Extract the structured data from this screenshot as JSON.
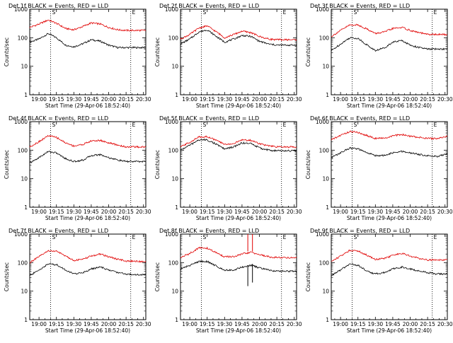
{
  "figure": {
    "common": {
      "ylabel": "Counts/sec",
      "xlabel": "Start Time (29-Apr-06 18:52:40)",
      "xticks": [
        "19:00",
        "19:15",
        "19:30",
        "19:45",
        "20:00",
        "20:15",
        "20:30"
      ],
      "yticks": [
        "1",
        "10",
        "100",
        "1000"
      ],
      "corner_labels": [
        "S",
        "E"
      ],
      "colors": {
        "events": "#000000",
        "lld": "#e00000",
        "marker": "#000000"
      }
    }
  },
  "chart_data": [
    {
      "type": "line",
      "title": "Det 1f BLACK = Events, RED = LLD",
      "x_range": [
        "18:52",
        "20:32"
      ],
      "ylim": [
        1,
        1000
      ],
      "yscale": "log",
      "vlines": [
        "19:10",
        "20:19"
      ],
      "series": [
        {
          "name": "BLACK = Events",
          "x": [
            "18:52",
            "19:00",
            "19:08",
            "19:15",
            "19:23",
            "19:30",
            "19:38",
            "19:45",
            "19:53",
            "20:00",
            "20:08",
            "20:15",
            "20:23",
            "20:30"
          ],
          "y": [
            70,
            90,
            140,
            100,
            55,
            48,
            62,
            85,
            75,
            55,
            45,
            45,
            45,
            45
          ]
        },
        {
          "name": "RED = LLD",
          "x": [
            "18:52",
            "19:00",
            "19:08",
            "19:15",
            "19:23",
            "19:30",
            "19:38",
            "19:45",
            "19:53",
            "20:00",
            "20:08",
            "20:15",
            "20:23",
            "20:30"
          ],
          "y": [
            230,
            300,
            420,
            320,
            210,
            190,
            250,
            330,
            300,
            230,
            190,
            180,
            180,
            180
          ]
        }
      ]
    },
    {
      "type": "line",
      "title": "Det 2f BLACK = Events, RED = LLD",
      "x_range": [
        "18:52",
        "20:32"
      ],
      "ylim": [
        1,
        1000
      ],
      "yscale": "log",
      "vlines": [
        "19:10",
        "20:19"
      ],
      "series": [
        {
          "name": "BLACK = Events",
          "x": [
            "18:52",
            "19:00",
            "19:08",
            "19:15",
            "19:23",
            "19:30",
            "19:38",
            "19:45",
            "19:53",
            "20:00",
            "20:08",
            "20:15",
            "20:23",
            "20:30"
          ],
          "y": [
            60,
            90,
            160,
            190,
            110,
            70,
            90,
            120,
            110,
            75,
            60,
            55,
            55,
            55
          ]
        },
        {
          "name": "RED = LLD",
          "x": [
            "18:52",
            "19:00",
            "19:08",
            "19:15",
            "19:23",
            "19:30",
            "19:38",
            "19:45",
            "19:53",
            "20:00",
            "20:08",
            "20:15",
            "20:23",
            "20:30"
          ],
          "y": [
            90,
            130,
            220,
            260,
            160,
            100,
            130,
            170,
            150,
            110,
            90,
            85,
            85,
            85
          ]
        }
      ]
    },
    {
      "type": "line",
      "title": "Det 3f BLACK = Events, RED = LLD",
      "x_range": [
        "18:52",
        "20:32"
      ],
      "ylim": [
        1,
        1000
      ],
      "yscale": "log",
      "vlines": [
        "19:10",
        "20:19"
      ],
      "series": [
        {
          "name": "BLACK = Events",
          "x": [
            "18:52",
            "19:00",
            "19:08",
            "19:15",
            "19:23",
            "19:30",
            "19:38",
            "19:45",
            "19:53",
            "20:00",
            "20:08",
            "20:15",
            "20:23",
            "20:30"
          ],
          "y": [
            35,
            60,
            100,
            95,
            55,
            35,
            45,
            70,
            80,
            55,
            45,
            40,
            40,
            40
          ]
        },
        {
          "name": "RED = LLD",
          "x": [
            "18:52",
            "19:00",
            "19:08",
            "19:15",
            "19:23",
            "19:30",
            "19:38",
            "19:45",
            "19:53",
            "20:00",
            "20:08",
            "20:15",
            "20:23",
            "20:30"
          ],
          "y": [
            110,
            180,
            280,
            280,
            200,
            140,
            160,
            210,
            230,
            180,
            150,
            130,
            130,
            130
          ]
        }
      ]
    },
    {
      "type": "line",
      "title": "Det 4f BLACK = Events, RED = LLD",
      "x_range": [
        "18:52",
        "20:32"
      ],
      "ylim": [
        1,
        1000
      ],
      "yscale": "log",
      "vlines": [
        "19:10",
        "20:19"
      ],
      "series": [
        {
          "name": "BLACK = Events",
          "x": [
            "18:52",
            "19:00",
            "19:08",
            "19:15",
            "19:23",
            "19:30",
            "19:38",
            "19:45",
            "19:53",
            "20:00",
            "20:08",
            "20:15",
            "20:23",
            "20:30"
          ],
          "y": [
            35,
            55,
            90,
            80,
            50,
            40,
            45,
            65,
            70,
            55,
            45,
            40,
            40,
            40
          ]
        },
        {
          "name": "RED = LLD",
          "x": [
            "18:52",
            "19:00",
            "19:08",
            "19:15",
            "19:23",
            "19:30",
            "19:38",
            "19:45",
            "19:53",
            "20:00",
            "20:08",
            "20:15",
            "20:23",
            "20:30"
          ],
          "y": [
            130,
            200,
            320,
            280,
            180,
            140,
            160,
            210,
            220,
            180,
            150,
            130,
            130,
            130
          ]
        }
      ]
    },
    {
      "type": "line",
      "title": "Det 5f BLACK = Events, RED = LLD",
      "x_range": [
        "18:52",
        "20:32"
      ],
      "ylim": [
        1,
        1000
      ],
      "yscale": "log",
      "vlines": [
        "19:10",
        "20:19"
      ],
      "series": [
        {
          "name": "BLACK = Events",
          "x": [
            "18:52",
            "19:00",
            "19:08",
            "19:15",
            "19:23",
            "19:30",
            "19:38",
            "19:45",
            "19:53",
            "20:00",
            "20:08",
            "20:15",
            "20:23",
            "20:30"
          ],
          "y": [
            100,
            150,
            230,
            230,
            160,
            110,
            130,
            180,
            170,
            120,
            100,
            95,
            95,
            95
          ]
        },
        {
          "name": "RED = LLD",
          "x": [
            "18:52",
            "19:00",
            "19:08",
            "19:15",
            "19:23",
            "19:30",
            "19:38",
            "19:45",
            "19:53",
            "20:00",
            "20:08",
            "20:15",
            "20:23",
            "20:30"
          ],
          "y": [
            130,
            190,
            290,
            300,
            220,
            160,
            170,
            230,
            220,
            170,
            140,
            130,
            130,
            130
          ]
        }
      ]
    },
    {
      "type": "line",
      "title": "Det 6f BLACK = Events, RED = LLD",
      "x_range": [
        "18:52",
        "20:32"
      ],
      "ylim": [
        1,
        1000
      ],
      "yscale": "log",
      "vlines": [
        "19:10",
        "20:19"
      ],
      "series": [
        {
          "name": "BLACK = Events",
          "x": [
            "18:52",
            "19:00",
            "19:08",
            "19:15",
            "19:23",
            "19:30",
            "19:38",
            "19:45",
            "19:53",
            "20:00",
            "20:08",
            "20:15",
            "20:23",
            "20:30"
          ],
          "y": [
            55,
            80,
            120,
            110,
            80,
            65,
            65,
            80,
            90,
            80,
            70,
            65,
            60,
            70
          ]
        },
        {
          "name": "RED = LLD",
          "x": [
            "18:52",
            "19:00",
            "19:08",
            "19:15",
            "19:23",
            "19:30",
            "19:38",
            "19:45",
            "19:53",
            "20:00",
            "20:08",
            "20:15",
            "20:23",
            "20:30"
          ],
          "y": [
            230,
            330,
            450,
            420,
            320,
            260,
            260,
            320,
            350,
            310,
            280,
            260,
            250,
            300
          ]
        }
      ]
    },
    {
      "type": "line",
      "title": "Det 7f BLACK = Events, RED = LLD",
      "x_range": [
        "18:52",
        "20:32"
      ],
      "ylim": [
        1,
        1000
      ],
      "yscale": "log",
      "vlines": [
        "19:10",
        "20:19"
      ],
      "series": [
        {
          "name": "BLACK = Events",
          "x": [
            "18:52",
            "19:00",
            "19:08",
            "19:15",
            "19:23",
            "19:30",
            "19:38",
            "19:45",
            "19:53",
            "20:00",
            "20:08",
            "20:15",
            "20:23",
            "20:30"
          ],
          "y": [
            35,
            55,
            90,
            85,
            55,
            40,
            45,
            60,
            70,
            55,
            45,
            40,
            38,
            38
          ]
        },
        {
          "name": "RED = LLD",
          "x": [
            "18:52",
            "19:00",
            "19:08",
            "19:15",
            "19:23",
            "19:30",
            "19:38",
            "19:45",
            "19:53",
            "20:00",
            "20:08",
            "20:15",
            "20:23",
            "20:30"
          ],
          "y": [
            100,
            160,
            260,
            250,
            170,
            120,
            130,
            170,
            200,
            160,
            130,
            115,
            110,
            110
          ]
        }
      ]
    },
    {
      "type": "line",
      "title": "Det 8f BLACK = Events, RED = LLD",
      "x_range": [
        "18:52",
        "20:32"
      ],
      "ylim": [
        1,
        1000
      ],
      "yscale": "log",
      "vlines": [
        "19:10",
        "20:19"
      ],
      "series": [
        {
          "name": "BLACK = Events",
          "x": [
            "18:52",
            "19:00",
            "19:08",
            "19:15",
            "19:23",
            "19:30",
            "19:38",
            "19:45",
            "19:53",
            "20:00",
            "20:08",
            "20:15",
            "20:23",
            "20:30"
          ],
          "y": [
            60,
            80,
            110,
            110,
            75,
            55,
            55,
            70,
            80,
            65,
            55,
            50,
            50,
            50
          ]
        },
        {
          "name": "RED = LLD",
          "x": [
            "18:52",
            "19:00",
            "19:08",
            "19:15",
            "19:23",
            "19:30",
            "19:38",
            "19:45",
            "19:53",
            "20:00",
            "20:08",
            "20:15",
            "20:23",
            "20:30"
          ],
          "y": [
            150,
            210,
            330,
            320,
            220,
            160,
            160,
            200,
            230,
            190,
            160,
            150,
            150,
            150
          ]
        }
      ],
      "spikes": [
        {
          "series": "BLACK = Events",
          "x": "19:50",
          "y_low": 15,
          "y_high": 80
        },
        {
          "series": "BLACK = Events",
          "x": "19:54",
          "y_low": 20,
          "y_high": 90
        },
        {
          "series": "RED = LLD",
          "x": "19:50",
          "y_low": 250,
          "y_high": 1000
        },
        {
          "series": "RED = LLD",
          "x": "19:54",
          "y_low": 250,
          "y_high": 1000
        }
      ]
    },
    {
      "type": "line",
      "title": "Det 9f BLACK = Events, RED = LLD",
      "x_range": [
        "18:52",
        "20:32"
      ],
      "ylim": [
        1,
        1000
      ],
      "yscale": "log",
      "vlines": [
        "19:10",
        "20:19"
      ],
      "series": [
        {
          "name": "BLACK = Events",
          "x": [
            "18:52",
            "19:00",
            "19:08",
            "19:15",
            "19:23",
            "19:30",
            "19:38",
            "19:45",
            "19:53",
            "20:00",
            "20:08",
            "20:15",
            "20:23",
            "20:30"
          ],
          "y": [
            35,
            55,
            90,
            80,
            50,
            40,
            45,
            60,
            70,
            60,
            50,
            45,
            40,
            40
          ]
        },
        {
          "name": "RED = LLD",
          "x": [
            "18:52",
            "19:00",
            "19:08",
            "19:15",
            "19:23",
            "19:30",
            "19:38",
            "19:45",
            "19:53",
            "20:00",
            "20:08",
            "20:15",
            "20:23",
            "20:30"
          ],
          "y": [
            110,
            170,
            270,
            260,
            180,
            130,
            140,
            180,
            210,
            170,
            140,
            125,
            125,
            125
          ]
        }
      ]
    }
  ]
}
